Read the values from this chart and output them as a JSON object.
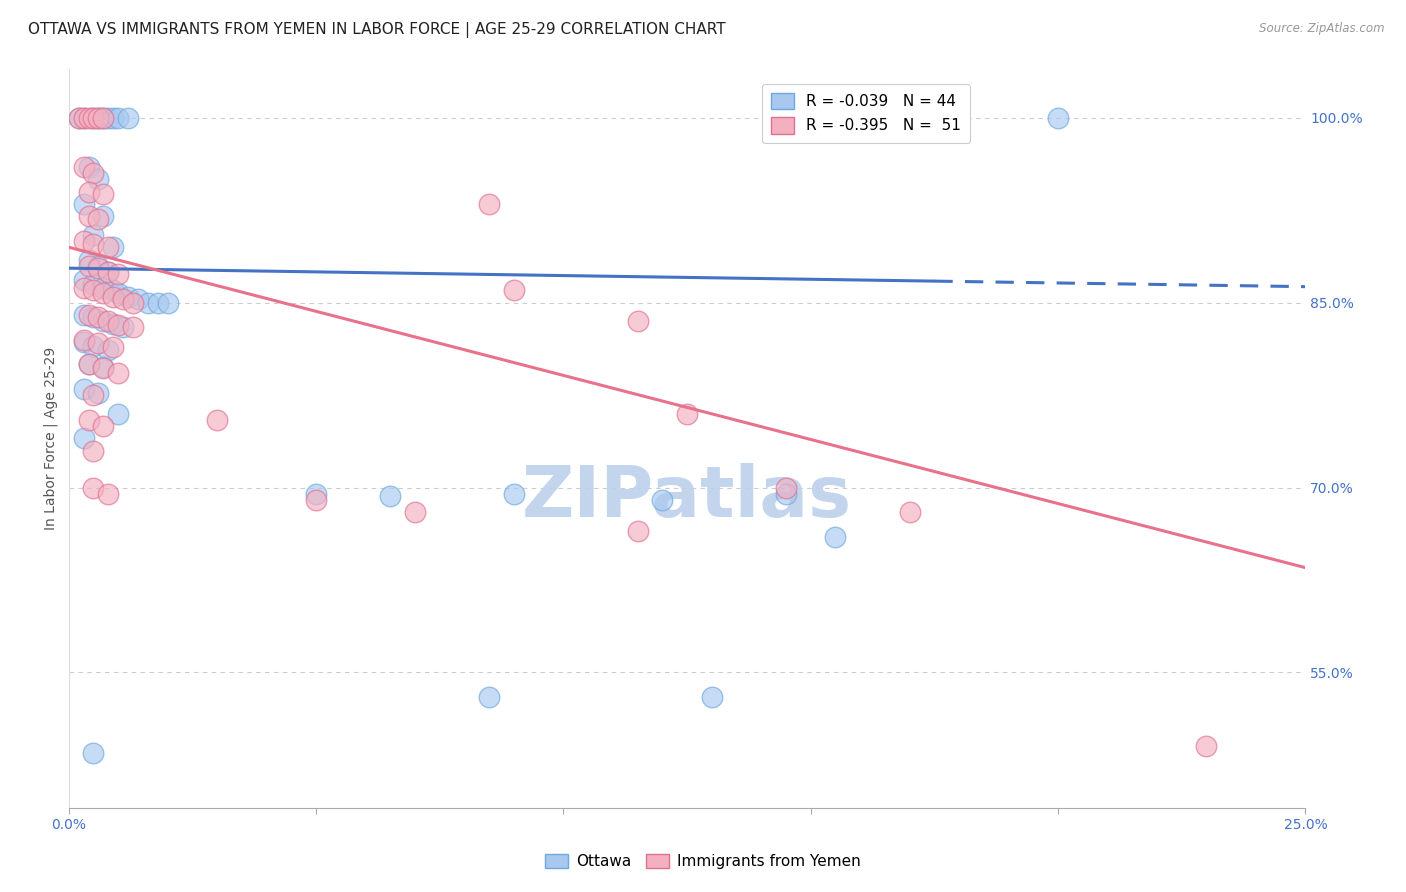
{
  "title": "OTTAWA VS IMMIGRANTS FROM YEMEN IN LABOR FORCE | AGE 25-29 CORRELATION CHART",
  "source": "Source: ZipAtlas.com",
  "ylabel": "In Labor Force | Age 25-29",
  "xlim": [
    0.0,
    0.25
  ],
  "ylim": [
    0.44,
    1.04
  ],
  "yticks_right": [
    0.55,
    0.7,
    0.85,
    1.0
  ],
  "ytick_labels_right": [
    "55.0%",
    "70.0%",
    "85.0%",
    "100.0%"
  ],
  "blue_scatter": [
    [
      0.002,
      1.0
    ],
    [
      0.003,
      1.0
    ],
    [
      0.005,
      1.0
    ],
    [
      0.006,
      1.0
    ],
    [
      0.007,
      1.0
    ],
    [
      0.008,
      1.0
    ],
    [
      0.009,
      1.0
    ],
    [
      0.01,
      1.0
    ],
    [
      0.012,
      1.0
    ],
    [
      0.2,
      1.0
    ],
    [
      0.004,
      0.96
    ],
    [
      0.006,
      0.95
    ],
    [
      0.003,
      0.93
    ],
    [
      0.007,
      0.92
    ],
    [
      0.005,
      0.905
    ],
    [
      0.009,
      0.895
    ],
    [
      0.004,
      0.885
    ],
    [
      0.006,
      0.88
    ],
    [
      0.008,
      0.875
    ],
    [
      0.003,
      0.868
    ],
    [
      0.005,
      0.865
    ],
    [
      0.007,
      0.862
    ],
    [
      0.009,
      0.86
    ],
    [
      0.01,
      0.858
    ],
    [
      0.012,
      0.855
    ],
    [
      0.014,
      0.853
    ],
    [
      0.016,
      0.85
    ],
    [
      0.018,
      0.85
    ],
    [
      0.02,
      0.85
    ],
    [
      0.003,
      0.84
    ],
    [
      0.005,
      0.838
    ],
    [
      0.007,
      0.835
    ],
    [
      0.009,
      0.833
    ],
    [
      0.011,
      0.83
    ],
    [
      0.003,
      0.818
    ],
    [
      0.005,
      0.815
    ],
    [
      0.008,
      0.812
    ],
    [
      0.004,
      0.8
    ],
    [
      0.007,
      0.798
    ],
    [
      0.003,
      0.78
    ],
    [
      0.006,
      0.777
    ],
    [
      0.01,
      0.76
    ],
    [
      0.003,
      0.74
    ],
    [
      0.05,
      0.695
    ],
    [
      0.065,
      0.693
    ],
    [
      0.005,
      0.485
    ],
    [
      0.09,
      0.695
    ],
    [
      0.12,
      0.69
    ],
    [
      0.145,
      0.695
    ],
    [
      0.13,
      0.53
    ],
    [
      0.085,
      0.53
    ],
    [
      0.155,
      0.66
    ]
  ],
  "pink_scatter": [
    [
      0.002,
      1.0
    ],
    [
      0.003,
      1.0
    ],
    [
      0.004,
      1.0
    ],
    [
      0.005,
      1.0
    ],
    [
      0.006,
      1.0
    ],
    [
      0.007,
      1.0
    ],
    [
      0.003,
      0.96
    ],
    [
      0.005,
      0.955
    ],
    [
      0.004,
      0.94
    ],
    [
      0.007,
      0.938
    ],
    [
      0.085,
      0.93
    ],
    [
      0.004,
      0.92
    ],
    [
      0.006,
      0.918
    ],
    [
      0.003,
      0.9
    ],
    [
      0.005,
      0.898
    ],
    [
      0.008,
      0.895
    ],
    [
      0.004,
      0.88
    ],
    [
      0.006,
      0.878
    ],
    [
      0.008,
      0.875
    ],
    [
      0.01,
      0.873
    ],
    [
      0.003,
      0.862
    ],
    [
      0.005,
      0.86
    ],
    [
      0.007,
      0.858
    ],
    [
      0.009,
      0.855
    ],
    [
      0.011,
      0.853
    ],
    [
      0.013,
      0.85
    ],
    [
      0.004,
      0.84
    ],
    [
      0.006,
      0.838
    ],
    [
      0.008,
      0.835
    ],
    [
      0.01,
      0.832
    ],
    [
      0.013,
      0.83
    ],
    [
      0.003,
      0.82
    ],
    [
      0.006,
      0.817
    ],
    [
      0.009,
      0.814
    ],
    [
      0.004,
      0.8
    ],
    [
      0.007,
      0.797
    ],
    [
      0.01,
      0.793
    ],
    [
      0.005,
      0.775
    ],
    [
      0.004,
      0.755
    ],
    [
      0.007,
      0.75
    ],
    [
      0.03,
      0.755
    ],
    [
      0.005,
      0.73
    ],
    [
      0.005,
      0.7
    ],
    [
      0.008,
      0.695
    ],
    [
      0.05,
      0.69
    ],
    [
      0.07,
      0.68
    ],
    [
      0.09,
      0.86
    ],
    [
      0.115,
      0.835
    ],
    [
      0.125,
      0.76
    ],
    [
      0.145,
      0.7
    ],
    [
      0.17,
      0.68
    ],
    [
      0.115,
      0.665
    ],
    [
      0.23,
      0.49
    ]
  ],
  "blue_line_x": [
    0.0,
    0.25
  ],
  "blue_line_y": [
    0.878,
    0.863
  ],
  "blue_line_solid_end": 0.175,
  "pink_line_x": [
    0.0,
    0.25
  ],
  "pink_line_y": [
    0.895,
    0.635
  ],
  "blue_line_color": "#4472C4",
  "pink_line_color": "#E8728A",
  "watermark": "ZIPatlas",
  "watermark_color": "#BDD0EC",
  "background_color": "#FFFFFF",
  "grid_color": "#CCCCCC",
  "title_color": "#222222",
  "axis_label_color": "#555555",
  "right_axis_color": "#4472C4",
  "bottom_label_color": "#333333",
  "blue_face": "#A8C8F0",
  "blue_edge": "#6EA8DC",
  "pink_face": "#F4B0C0",
  "pink_edge": "#E07090"
}
